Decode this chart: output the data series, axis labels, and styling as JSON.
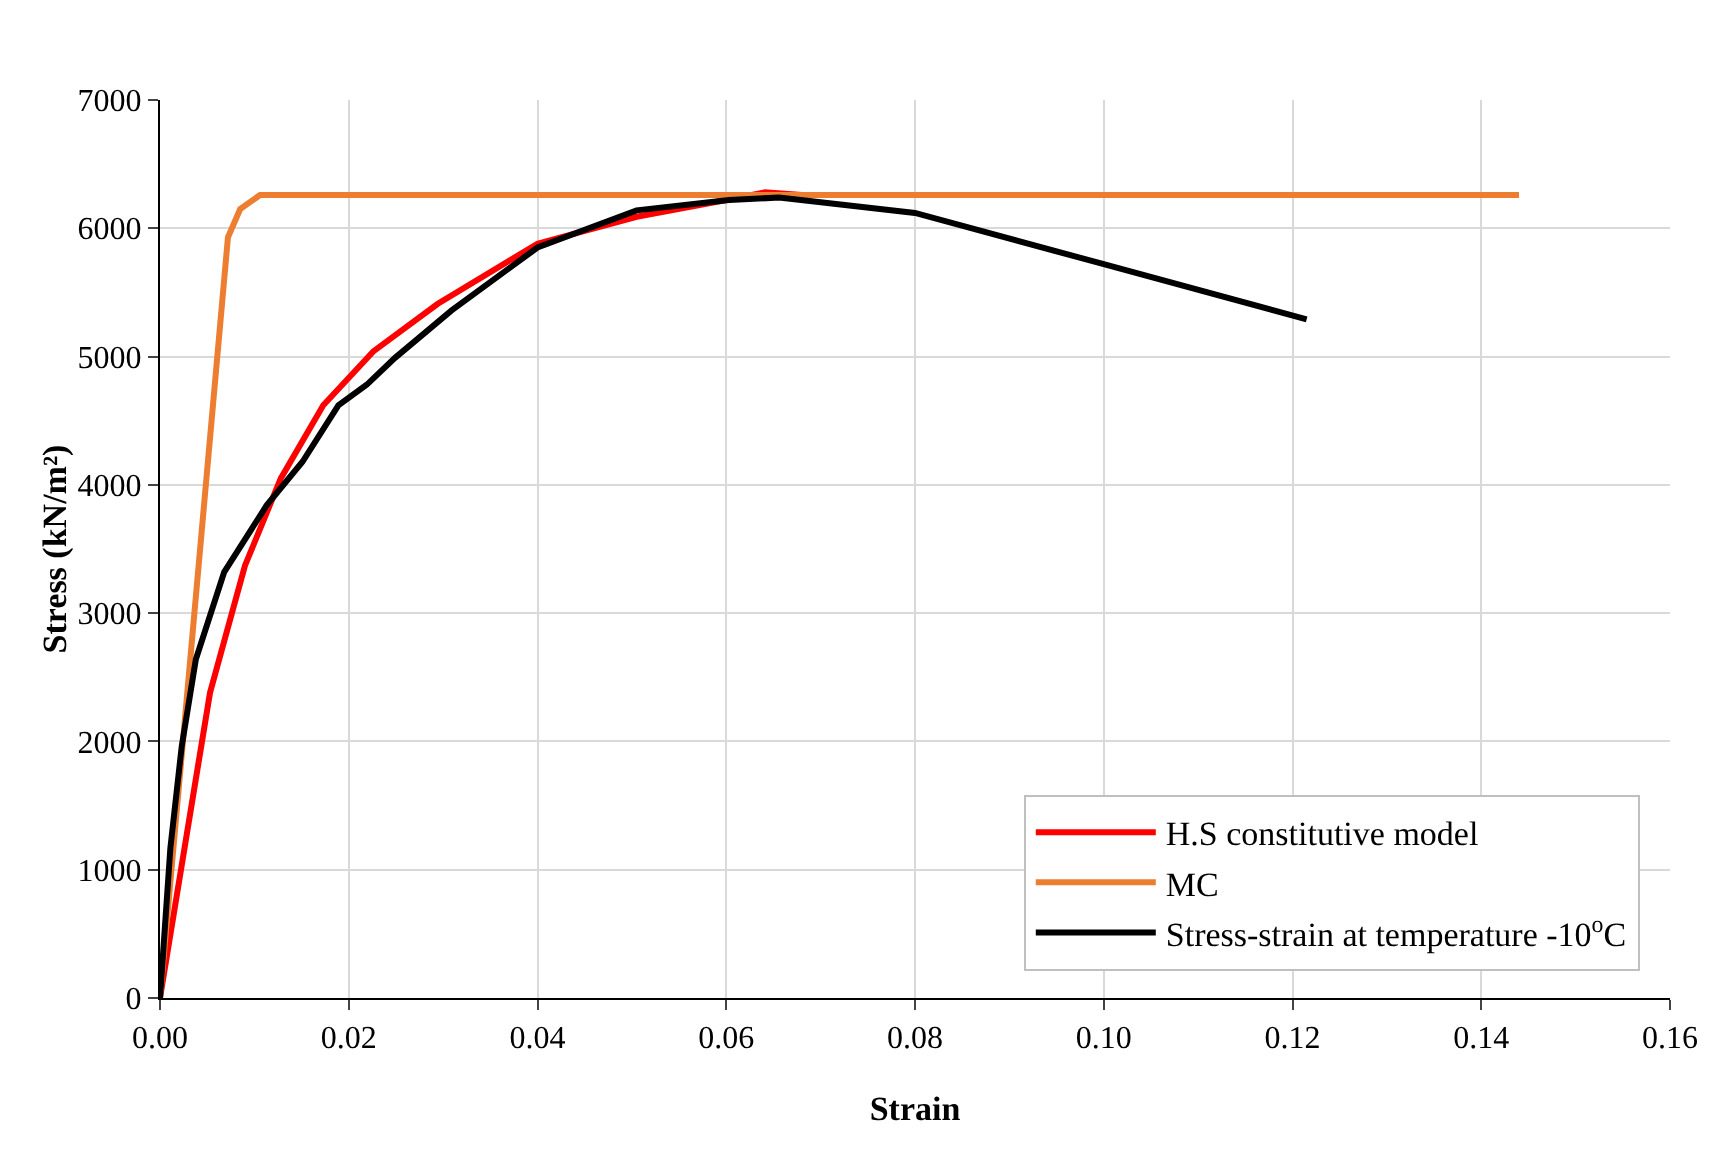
{
  "chart_data": {
    "type": "line",
    "xlabel": "Strain",
    "ylabel": "Stress (kN/m²)",
    "xlim": [
      0,
      0.16
    ],
    "xticks": [
      {
        "value": 0,
        "label": "0.00"
      },
      {
        "value": 0.02,
        "label": "0.02"
      },
      {
        "value": 0.04,
        "label": "0.04"
      },
      {
        "value": 0.06,
        "label": "0.06"
      },
      {
        "value": 0.08,
        "label": "0.08"
      },
      {
        "value": 0.1,
        "label": "0.10"
      },
      {
        "value": 0.12,
        "label": "0.12"
      },
      {
        "value": 0.14,
        "label": "0.14"
      },
      {
        "value": 0.16,
        "label": "0.16"
      }
    ],
    "ylim": [
      0,
      7000
    ],
    "yticks": [
      0,
      1000,
      2000,
      3000,
      4000,
      5000,
      6000,
      7000
    ],
    "grid": true,
    "legend": "bottom right",
    "marker": "none",
    "line_style": "solid",
    "series": [
      {
        "name": "H.S constitutive model",
        "color": "#ff0000",
        "x": [
          0,
          0.0026,
          0.0053,
          0.009,
          0.0128,
          0.0173,
          0.0226,
          0.0294,
          0.04,
          0.0505,
          0.06,
          0.0641,
          0.068
        ],
        "values": [
          0,
          1170,
          2380,
          3370,
          4050,
          4620,
          5040,
          5410,
          5880,
          6090,
          6220,
          6280,
          6260
        ]
      },
      {
        "name": "MC",
        "color": "#ed7d31",
        "x": [
          0,
          0.0072,
          0.0085,
          0.0106,
          0.144
        ],
        "values": [
          0,
          5930,
          6150,
          6260,
          6260
        ]
      },
      {
        "name": "Stress-strain at temperature -10$^{o}$C",
        "color": "#000000",
        "x": [
          0,
          0.0011,
          0.0023,
          0.0038,
          0.0068,
          0.0113,
          0.0151,
          0.0189,
          0.0219,
          0.0249,
          0.0309,
          0.04,
          0.0505,
          0.0603,
          0.0656,
          0.08,
          0.1,
          0.1215
        ],
        "values": [
          0,
          1170,
          1960,
          2640,
          3320,
          3840,
          4180,
          4620,
          4780,
          4990,
          5360,
          5850,
          6140,
          6220,
          6240,
          6120,
          5720,
          5290
        ]
      }
    ]
  }
}
